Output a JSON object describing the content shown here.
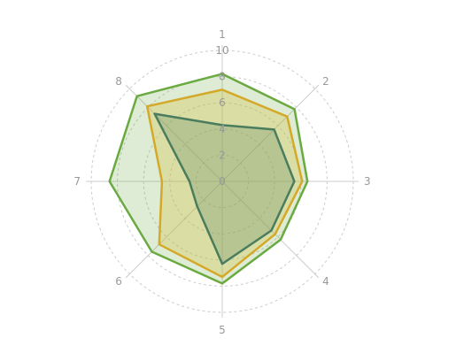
{
  "chart_data": {
    "type": "radar",
    "title": "",
    "axes": [
      "1",
      "2",
      "3",
      "4",
      "5",
      "6",
      "7",
      "8"
    ],
    "rlim": [
      0,
      10
    ],
    "r_ticks": [
      0,
      2,
      4,
      6,
      8,
      10
    ],
    "grid": true,
    "grid_style": "dashed",
    "series": [
      {
        "values": [
          8.2,
          7.8,
          6.5,
          6.3,
          7.8,
          7.6,
          8.6,
          9.2
        ],
        "stroke": "#6aaa40",
        "fill": "#6aaa40",
        "fill_opacity": 0.22
      },
      {
        "values": [
          7.0,
          7.0,
          6.1,
          5.7,
          7.3,
          6.8,
          4.6,
          8.1
        ],
        "stroke": "#d4a92a",
        "fill": "#d8c74a",
        "fill_opacity": 0.35
      },
      {
        "values": [
          4.3,
          5.6,
          5.5,
          5.3,
          6.3,
          2.7,
          2.5,
          7.3
        ],
        "stroke": "#4a7c5e",
        "fill": "#4a7c5e",
        "fill_opacity": 0.25
      }
    ]
  }
}
